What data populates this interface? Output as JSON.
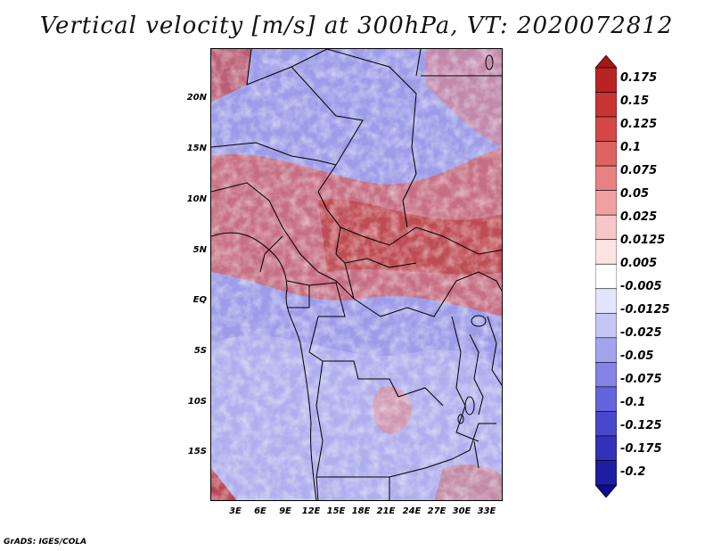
{
  "title": "Vertical velocity [m/s] at 300hPa, VT: 2020072812",
  "footer": "GrADS: IGES/COLA",
  "lat_labels": [
    "20N",
    "15N",
    "10N",
    "5N",
    "EQ",
    "5S",
    "10S",
    "15S"
  ],
  "lon_labels": [
    "3E",
    "6E",
    "9E",
    "12E",
    "15E",
    "18E",
    "21E",
    "24E",
    "27E",
    "30E",
    "33E"
  ],
  "colorbar": {
    "labels": [
      "0.175",
      "0.15",
      "0.125",
      "0.1",
      "0.075",
      "0.05",
      "0.025",
      "0.0125",
      "0.005",
      "-0.005",
      "-0.0125",
      "-0.025",
      "-0.05",
      "-0.075",
      "-0.1",
      "-0.125",
      "-0.175",
      "-0.2"
    ],
    "colors": [
      "#a51818",
      "#b82424",
      "#c83434",
      "#d44848",
      "#de6464",
      "#e88282",
      "#f0a2a2",
      "#f7c6c6",
      "#fce4e4",
      "#ffffff",
      "#e4e4fc",
      "#c6c6f5",
      "#a4a4ee",
      "#8484e6",
      "#6464dc",
      "#4848cc",
      "#3232b8",
      "#1e1ea4",
      "#0c0c8c"
    ]
  }
}
